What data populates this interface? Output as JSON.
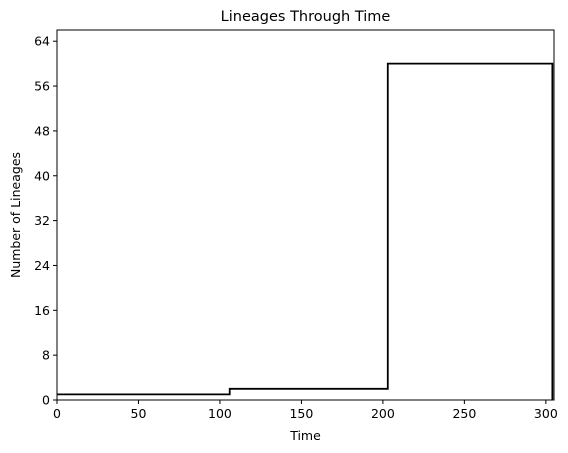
{
  "chart_data": {
    "type": "line",
    "title": "Lineages Through Time",
    "xlabel": "Time",
    "ylabel": "Number of Lineages",
    "xlim": [
      0,
      305
    ],
    "ylim": [
      0,
      66
    ],
    "xticks": [
      0,
      50,
      100,
      150,
      200,
      250,
      300
    ],
    "yticks": [
      0,
      8,
      16,
      24,
      32,
      40,
      48,
      56,
      64
    ],
    "grid": false,
    "series": [
      {
        "line_color": "#000000",
        "step": true,
        "x": [
          0,
          106,
          106,
          203,
          203,
          304,
          304
        ],
        "y": [
          1,
          1,
          2,
          2,
          60,
          60,
          0
        ]
      }
    ]
  }
}
